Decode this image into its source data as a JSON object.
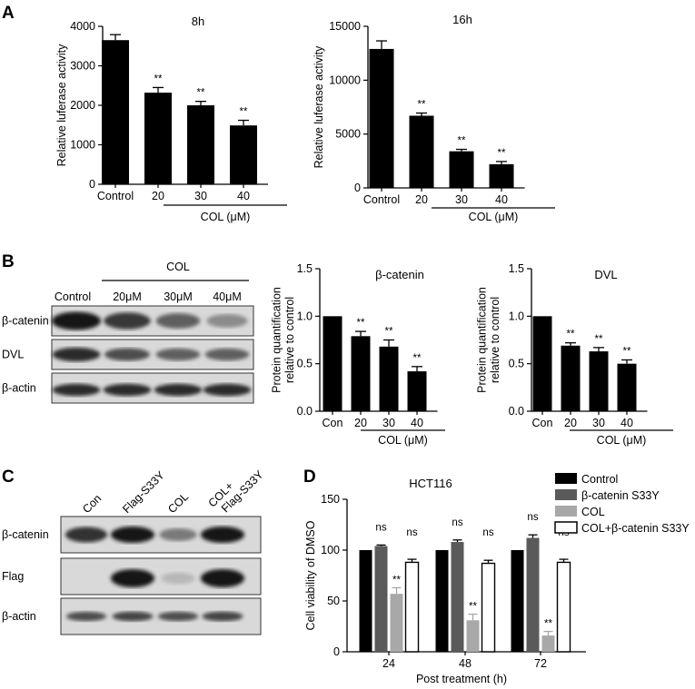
{
  "panel_labels": {
    "a": "A",
    "b": "B",
    "c": "C",
    "d": "D"
  },
  "chart_data": [
    {
      "id": "A1",
      "type": "bar",
      "title": "8h",
      "ylabel": "Relative luferase activity",
      "xlabel": "COL (μM)",
      "categories": [
        "Control",
        "20",
        "30",
        "40"
      ],
      "values": [
        3650,
        2320,
        2000,
        1490
      ],
      "errors": [
        140,
        130,
        100,
        130
      ],
      "significance": [
        "",
        "**",
        "**",
        "**"
      ],
      "ylim": [
        0,
        4000
      ],
      "yticks": [
        0,
        1000,
        2000,
        3000,
        4000
      ],
      "color": "#000000"
    },
    {
      "id": "A2",
      "type": "bar",
      "title": "16h",
      "ylabel": "Relative luferase activity",
      "xlabel": "COL (μM)",
      "categories": [
        "Control",
        "20",
        "30",
        "40"
      ],
      "values": [
        12900,
        6700,
        3400,
        2200
      ],
      "errors": [
        750,
        250,
        180,
        250
      ],
      "significance": [
        "",
        "**",
        "**",
        "**"
      ],
      "ylim": [
        0,
        15000
      ],
      "yticks": [
        0,
        5000,
        10000,
        15000
      ],
      "color": "#000000"
    },
    {
      "id": "B1",
      "type": "bar",
      "title": "β-catenin",
      "ylabel": "Protein quantification relative to control",
      "xlabel": "COL (μM)",
      "categories": [
        "Con",
        "20",
        "30",
        "40"
      ],
      "values": [
        1.0,
        0.79,
        0.68,
        0.42
      ],
      "errors": [
        0,
        0.05,
        0.07,
        0.05
      ],
      "significance": [
        "",
        "**",
        "**",
        "**"
      ],
      "ylim": [
        0,
        1.5
      ],
      "yticks": [
        "0.0",
        "0.5",
        "1.0",
        "1.5"
      ],
      "color": "#000000"
    },
    {
      "id": "B2",
      "type": "bar",
      "title": "DVL",
      "ylabel": "Protein quantification relative to control",
      "xlabel": "COL (μM)",
      "categories": [
        "Con",
        "20",
        "30",
        "40"
      ],
      "values": [
        1.0,
        0.69,
        0.63,
        0.5
      ],
      "errors": [
        0,
        0.03,
        0.04,
        0.04
      ],
      "significance": [
        "",
        "**",
        "**",
        "**"
      ],
      "ylim": [
        0,
        1.5
      ],
      "yticks": [
        "0.0",
        "0.5",
        "1.0",
        "1.5"
      ],
      "color": "#000000"
    },
    {
      "id": "D",
      "type": "bar",
      "title": "HCT116",
      "ylabel": "Cell viability of DMSO",
      "xlabel": "Post treatment (h)",
      "categories": [
        "24",
        "48",
        "72"
      ],
      "ylim": [
        0,
        150
      ],
      "yticks": [
        0,
        50,
        100,
        150
      ],
      "legend_position": "top-right",
      "series": [
        {
          "name": "Control",
          "values": [
            100,
            100,
            100
          ],
          "errors": [
            0,
            0,
            0
          ],
          "significance": [
            "",
            "",
            ""
          ],
          "color": "#000000"
        },
        {
          "name": "β-catenin S33Y",
          "values": [
            104,
            108,
            112
          ],
          "errors": [
            1,
            2,
            3
          ],
          "significance": [
            "ns",
            "ns",
            "ns"
          ],
          "color": "#5a5a5a"
        },
        {
          "name": "COL",
          "values": [
            57,
            31,
            16
          ],
          "errors": [
            6,
            6,
            4
          ],
          "significance": [
            "**",
            "**",
            "**"
          ],
          "color": "#a8a8a8"
        },
        {
          "name": "COL+β-catenin S33Y",
          "values": [
            88,
            87,
            88
          ],
          "errors": [
            3,
            3,
            3
          ],
          "significance": [
            "ns",
            "ns",
            "ns"
          ],
          "color": "#ffffff"
        }
      ]
    }
  ],
  "blot_b": {
    "header": "COL",
    "lanes": [
      "Control",
      "20μM",
      "30μM",
      "40μM"
    ],
    "rows": [
      {
        "label": "β-catenin",
        "intensity": [
          1.0,
          0.82,
          0.6,
          0.35
        ]
      },
      {
        "label": "DVL",
        "intensity": [
          0.9,
          0.7,
          0.6,
          0.6
        ]
      },
      {
        "label": "β-actin",
        "intensity": [
          0.9,
          0.9,
          0.9,
          0.9
        ]
      }
    ]
  },
  "blot_c": {
    "lanes": [
      "Con",
      "Flag-S33Y",
      "COL",
      "COL+ Flag-S33Y"
    ],
    "rows": [
      {
        "label": "β-catenin",
        "intensity": [
          0.85,
          1.0,
          0.45,
          1.0
        ]
      },
      {
        "label": "Flag",
        "intensity": [
          0.0,
          1.0,
          0.1,
          1.0
        ]
      },
      {
        "label": "β-actin",
        "intensity": [
          0.7,
          0.75,
          0.7,
          0.75
        ]
      }
    ]
  }
}
